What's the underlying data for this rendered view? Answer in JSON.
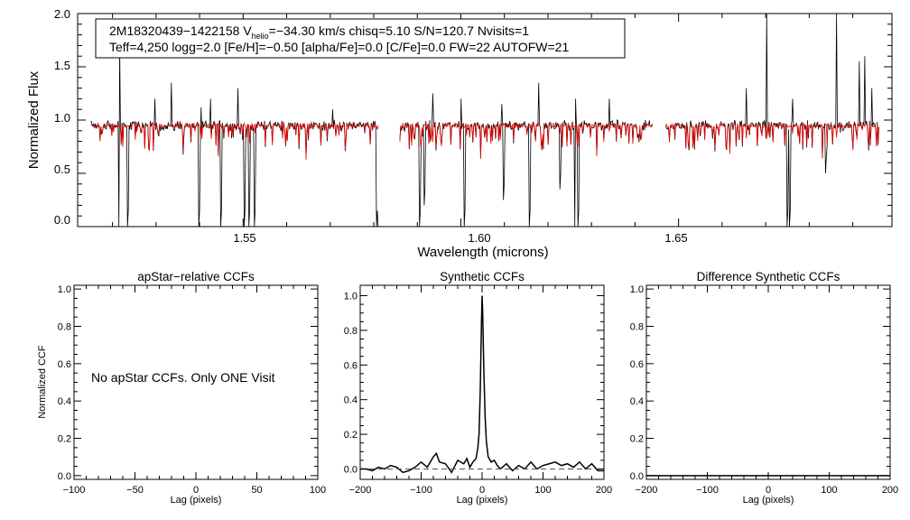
{
  "chart_data": [
    {
      "type": "line",
      "xlabel": "Wavelength (microns)",
      "ylabel": "Normalized Flux",
      "xlim": [
        1.512,
        1.699
      ],
      "ylim": [
        0,
        2.0
      ],
      "xticks": [
        "1.55",
        "1.60",
        "1.65"
      ],
      "xtick_values": [
        1.55,
        1.6,
        1.65
      ],
      "yticks": [
        "0.0",
        "0.5",
        "1.0",
        "1.5",
        "2.0"
      ],
      "ytick_values": [
        0,
        0.5,
        1.0,
        1.5,
        2.0
      ],
      "annotation": {
        "line1_star": "2M18320439−1422158",
        "line1_v": "V",
        "line1_vsub": "helio",
        "line1_rest": "=−34.30 km/s  chisq=5.10  S/N=120.7  Nvisits=1",
        "line2": "Teff=4,250 logg=2.0 [Fe/H]=−0.50 [alpha/Fe]=0.0 [C/Fe]=0.0 FW=22 AUTOFW=21"
      },
      "chip_ranges": [
        [
          1.515,
          1.581
        ],
        [
          1.586,
          1.644
        ],
        [
          1.647,
          1.696
        ]
      ],
      "series": [
        {
          "color": "#000000",
          "continuum": 0.95,
          "deep_lines": [
            [
              1.5214,
              0.0
            ],
            [
              1.5235,
              0.0
            ],
            [
              1.5399,
              0.0
            ],
            [
              1.5449,
              0.0
            ],
            [
              1.5503,
              0.0
            ],
            [
              1.5513,
              0.0
            ],
            [
              1.5526,
              0.0
            ],
            [
              1.5806,
              0.0
            ],
            [
              1.581,
              0.0
            ],
            [
              1.5853,
              0.0
            ],
            [
              1.5905,
              0.0
            ],
            [
              1.6007,
              0.0
            ],
            [
              1.6158,
              0.0
            ],
            [
              1.6262,
              0.0
            ],
            [
              1.6268,
              0.0
            ],
            [
              1.6749,
              0.0
            ],
            [
              1.6755,
              0.0
            ],
            [
              1.5915,
              0.2
            ],
            [
              1.6097,
              0.25
            ],
            [
              1.6228,
              0.35
            ],
            [
              1.6837,
              0.5
            ]
          ],
          "spikes": [
            [
              1.5216,
              1.7
            ],
            [
              1.5298,
              1.2
            ],
            [
              1.5336,
              1.35
            ],
            [
              1.5403,
              1.12
            ],
            [
              1.5425,
              1.2
            ],
            [
              1.5488,
              1.3
            ],
            [
              1.5705,
              1.1
            ],
            [
              1.5935,
              1.25
            ],
            [
              1.6001,
              1.2
            ],
            [
              1.6095,
              1.15
            ],
            [
              1.6178,
              1.35
            ],
            [
              1.6264,
              1.2
            ],
            [
              1.6341,
              1.2
            ],
            [
              1.6655,
              1.3
            ],
            [
              1.6702,
              2.0
            ],
            [
              1.6762,
              1.2
            ],
            [
              1.6862,
              2.0
            ],
            [
              1.6915,
              1.55
            ],
            [
              1.6927,
              1.6
            ],
            [
              1.6943,
              1.3
            ]
          ]
        },
        {
          "color": "#e00000",
          "continuum": 0.95,
          "note_equiv": "model"
        }
      ]
    },
    {
      "type": "line",
      "title": "apStar−relative CCFs",
      "xlabel": "Lag (pixels)",
      "ylabel": "Normalized CCF",
      "xlim": [
        -100,
        100
      ],
      "ylim": [
        -0.02,
        1.02
      ],
      "xticks": [
        "−100",
        "−50",
        "0",
        "50",
        "100"
      ],
      "xtick_values": [
        -100,
        -50,
        0,
        50,
        100
      ],
      "yticks": [
        "0.0",
        "0.2",
        "0.4",
        "0.6",
        "0.8",
        "1.0"
      ],
      "ytick_values": [
        0,
        0.2,
        0.4,
        0.6,
        0.8,
        1.0
      ],
      "message": "No apStar CCFs.  Only ONE Visit",
      "series": []
    },
    {
      "type": "line",
      "title": "Synthetic CCFs",
      "xlabel": "Lag (pixels)",
      "xlim": [
        -200,
        200
      ],
      "ylim": [
        -0.06,
        1.06
      ],
      "xticks": [
        "−200",
        "−100",
        "0",
        "100",
        "200"
      ],
      "xtick_values": [
        -200,
        -100,
        0,
        100,
        200
      ],
      "yticks": [
        "0.0",
        "0.2",
        "0.4",
        "0.6",
        "0.8",
        "1.0"
      ],
      "ytick_values": [
        0,
        0.2,
        0.4,
        0.6,
        0.8,
        1.0
      ],
      "series": [
        {
          "color": "#000000",
          "x": [
            -200,
            -190,
            -180,
            -170,
            -160,
            -150,
            -140,
            -130,
            -120,
            -110,
            -100,
            -90,
            -80,
            -75,
            -70,
            -60,
            -50,
            -40,
            -30,
            -25,
            -20,
            -15,
            -10,
            -7,
            -5,
            -3,
            -1,
            0,
            1,
            3,
            5,
            7,
            10,
            15,
            20,
            25,
            30,
            40,
            50,
            60,
            70,
            80,
            90,
            100,
            110,
            120,
            130,
            140,
            150,
            160,
            170,
            180,
            190,
            200
          ],
          "y": [
            0.0,
            0.0,
            -0.01,
            0.01,
            0.0,
            0.02,
            0.01,
            -0.02,
            -0.01,
            0.01,
            0.04,
            0.01,
            0.07,
            0.09,
            0.04,
            0.03,
            -0.02,
            0.05,
            0.03,
            0.06,
            0.01,
            0.04,
            0.06,
            0.12,
            0.2,
            0.45,
            0.85,
            1.0,
            0.9,
            0.55,
            0.3,
            0.16,
            0.07,
            0.04,
            0.05,
            0.02,
            0.0,
            0.03,
            -0.01,
            0.02,
            0.0,
            0.04,
            0.0,
            0.02,
            0.03,
            0.04,
            0.02,
            0.03,
            0.01,
            0.04,
            0.0,
            0.03,
            -0.01,
            -0.01
          ]
        },
        {
          "color": "#555555",
          "style": "dashed",
          "x": [
            -200,
            200
          ],
          "y": [
            0.0,
            0.0
          ]
        }
      ]
    },
    {
      "type": "line",
      "title": "Difference Synthetic CCFs",
      "xlabel": "Lag (pixels)",
      "xlim": [
        -200,
        200
      ],
      "ylim": [
        -0.02,
        1.02
      ],
      "xticks": [
        "−200",
        "−100",
        "0",
        "100",
        "200"
      ],
      "xtick_values": [
        -200,
        -100,
        0,
        100,
        200
      ],
      "yticks": [
        "0.0",
        "0.2",
        "0.4",
        "0.6",
        "0.8",
        "1.0"
      ],
      "ytick_values": [
        0,
        0.2,
        0.4,
        0.6,
        0.8,
        1.0
      ],
      "series": [
        {
          "color": "#000000",
          "x": [
            -200,
            200
          ],
          "y": [
            0.0,
            0.0
          ]
        }
      ]
    }
  ]
}
